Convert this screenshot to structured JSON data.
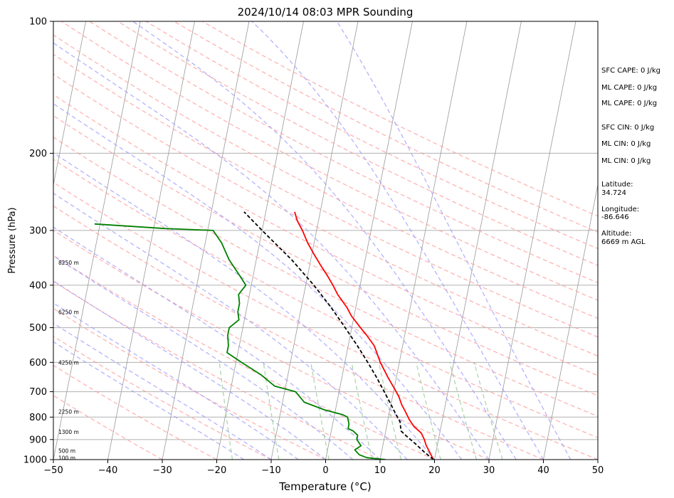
{
  "chart_data": {
    "type": "line",
    "title": "2024/10/14 08:03 MPR Sounding",
    "xlabel": "Temperature (°C)",
    "ylabel": "Pressure (hPa)",
    "xlim": [
      -50,
      50
    ],
    "ylim": [
      1000,
      100
    ],
    "y_scale": "log",
    "skew": true,
    "grid": true,
    "x_ticks": [
      "−50",
      "−40",
      "−30",
      "−20",
      "−10",
      "0",
      "10",
      "20",
      "30",
      "40",
      "50"
    ],
    "x_tick_values": [
      -50,
      -40,
      -30,
      -20,
      -10,
      0,
      10,
      20,
      30,
      40,
      50
    ],
    "y_ticks": [
      "1000",
      "900",
      "800",
      "700",
      "600",
      "500",
      "400",
      "300",
      "200",
      "100"
    ],
    "y_tick_values": [
      1000,
      900,
      800,
      700,
      600,
      500,
      400,
      300,
      200,
      100
    ],
    "series": [
      {
        "color": "#ff0000",
        "points": [
          [
            1000,
            19.8
          ],
          [
            960,
            18.8
          ],
          [
            930,
            18.0
          ],
          [
            900,
            17.4
          ],
          [
            870,
            16.6
          ],
          [
            840,
            15.0
          ],
          [
            810,
            13.9
          ],
          [
            780,
            13.0
          ],
          [
            750,
            12.0
          ],
          [
            720,
            11.2
          ],
          [
            700,
            10.5
          ],
          [
            650,
            8.5
          ],
          [
            600,
            6.5
          ],
          [
            550,
            4.8
          ],
          [
            520,
            3.0
          ],
          [
            500,
            1.6
          ],
          [
            470,
            -0.5
          ],
          [
            450,
            -1.6
          ],
          [
            420,
            -3.8
          ],
          [
            400,
            -5.0
          ],
          [
            380,
            -6.4
          ],
          [
            360,
            -8.0
          ],
          [
            340,
            -9.6
          ],
          [
            320,
            -11.2
          ],
          [
            300,
            -12.6
          ],
          [
            285,
            -13.9
          ],
          [
            272,
            -14.7
          ]
        ]
      },
      {
        "color": "#008000",
        "points": [
          [
            1000,
            11.0
          ],
          [
            990,
            7.5
          ],
          [
            975,
            6.0
          ],
          [
            950,
            5.0
          ],
          [
            930,
            6.0
          ],
          [
            900,
            5.0
          ],
          [
            880,
            5.0
          ],
          [
            860,
            4.0
          ],
          [
            850,
            3.0
          ],
          [
            830,
            3.0
          ],
          [
            800,
            2.5
          ],
          [
            790,
            1.5
          ],
          [
            770,
            -2.0
          ],
          [
            740,
            -6.0
          ],
          [
            700,
            -8.0
          ],
          [
            680,
            -12.0
          ],
          [
            640,
            -15.0
          ],
          [
            600,
            -19.0
          ],
          [
            570,
            -22.0
          ],
          [
            550,
            -22.0
          ],
          [
            520,
            -22.5
          ],
          [
            500,
            -22.5
          ],
          [
            480,
            -21.0
          ],
          [
            460,
            -21.5
          ],
          [
            440,
            -21.5
          ],
          [
            420,
            -22.0
          ],
          [
            400,
            -21.0
          ],
          [
            380,
            -22.5
          ],
          [
            350,
            -25.0
          ],
          [
            320,
            -27.0
          ],
          [
            300,
            -29.0
          ],
          [
            297,
            -38.0
          ],
          [
            290,
            -51.0
          ]
        ]
      },
      {
        "color": "#000000",
        "dash": "dashed",
        "points": [
          [
            1000,
            19.8
          ],
          [
            960,
            17.8
          ],
          [
            920,
            15.9
          ],
          [
            880,
            13.8
          ],
          [
            860,
            12.8
          ],
          [
            820,
            12.3
          ],
          [
            780,
            11.0
          ],
          [
            740,
            9.7
          ],
          [
            700,
            8.3
          ],
          [
            650,
            6.4
          ],
          [
            600,
            4.2
          ],
          [
            550,
            1.7
          ],
          [
            500,
            -1.2
          ],
          [
            450,
            -4.5
          ],
          [
            400,
            -8.5
          ],
          [
            350,
            -13.5
          ],
          [
            300,
            -20.0
          ],
          [
            272,
            -24.0
          ]
        ]
      }
    ],
    "height_labels": [
      {
        "p": 990,
        "label": "100 m"
      },
      {
        "p": 955,
        "label": "500 m"
      },
      {
        "p": 865,
        "label": "1300 m"
      },
      {
        "p": 777,
        "label": "2250 m"
      },
      {
        "p": 600,
        "label": "4250 m"
      },
      {
        "p": 460,
        "label": "6250 m"
      },
      {
        "p": 355,
        "label": "8250 m"
      }
    ],
    "annotations": [
      "SFC CAPE: 0 J/kg",
      "ML CAPE: 0 J/kg",
      "ML CAPE: 0 J/kg",
      "SFC CIN: 0 J/kg",
      "ML CIN: 0 J/kg",
      "ML CIN: 0 J/kg",
      "Latitude:",
      "34.724",
      "Longitude:",
      "-86.646",
      "Altitude:",
      "6669 m AGL"
    ],
    "colors": {
      "temperature": "#ff0000",
      "dewpoint": "#008000",
      "parcel": "#000000",
      "dry_adiabats": "#ff9999",
      "moist_adiabats": "#9999ff",
      "mixing_ratio": "#99cc99",
      "isotherms": "#999999"
    }
  }
}
